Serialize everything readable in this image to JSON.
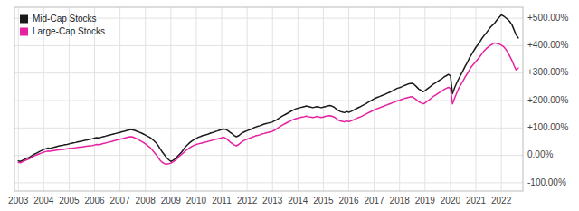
{
  "chart_data": {
    "type": "line",
    "x": [
      2003.0,
      2003.08,
      2003.17,
      2003.25,
      2003.33,
      2003.42,
      2003.5,
      2003.58,
      2003.67,
      2003.75,
      2003.83,
      2003.92,
      2004.0,
      2004.08,
      2004.17,
      2004.25,
      2004.33,
      2004.42,
      2004.5,
      2004.58,
      2004.67,
      2004.75,
      2004.83,
      2004.92,
      2005.0,
      2005.08,
      2005.17,
      2005.25,
      2005.33,
      2005.42,
      2005.5,
      2005.58,
      2005.67,
      2005.75,
      2005.83,
      2005.92,
      2006.0,
      2006.08,
      2006.17,
      2006.25,
      2006.33,
      2006.42,
      2006.5,
      2006.58,
      2006.67,
      2006.75,
      2006.83,
      2006.92,
      2007.0,
      2007.08,
      2007.17,
      2007.25,
      2007.33,
      2007.42,
      2007.5,
      2007.58,
      2007.67,
      2007.75,
      2007.83,
      2007.92,
      2008.0,
      2008.08,
      2008.17,
      2008.25,
      2008.33,
      2008.42,
      2008.5,
      2008.58,
      2008.67,
      2008.75,
      2008.83,
      2008.92,
      2009.0,
      2009.08,
      2009.17,
      2009.25,
      2009.33,
      2009.42,
      2009.5,
      2009.58,
      2009.67,
      2009.75,
      2009.83,
      2009.92,
      2010.0,
      2010.08,
      2010.17,
      2010.25,
      2010.33,
      2010.42,
      2010.5,
      2010.58,
      2010.67,
      2010.75,
      2010.83,
      2010.92,
      2011.0,
      2011.08,
      2011.17,
      2011.25,
      2011.33,
      2011.42,
      2011.5,
      2011.58,
      2011.67,
      2011.75,
      2011.83,
      2011.92,
      2012.0,
      2012.08,
      2012.17,
      2012.25,
      2012.33,
      2012.42,
      2012.5,
      2012.58,
      2012.67,
      2012.75,
      2012.83,
      2012.92,
      2013.0,
      2013.08,
      2013.17,
      2013.25,
      2013.33,
      2013.42,
      2013.5,
      2013.58,
      2013.67,
      2013.75,
      2013.83,
      2013.92,
      2014.0,
      2014.08,
      2014.17,
      2014.25,
      2014.33,
      2014.42,
      2014.5,
      2014.58,
      2014.67,
      2014.75,
      2014.83,
      2014.92,
      2015.0,
      2015.08,
      2015.17,
      2015.25,
      2015.33,
      2015.42,
      2015.5,
      2015.58,
      2015.67,
      2015.75,
      2015.83,
      2015.92,
      2016.0,
      2016.08,
      2016.17,
      2016.25,
      2016.33,
      2016.42,
      2016.5,
      2016.58,
      2016.67,
      2016.75,
      2016.83,
      2016.92,
      2017.0,
      2017.08,
      2017.17,
      2017.25,
      2017.33,
      2017.42,
      2017.5,
      2017.58,
      2017.67,
      2017.75,
      2017.83,
      2017.92,
      2018.0,
      2018.08,
      2018.17,
      2018.25,
      2018.33,
      2018.42,
      2018.5,
      2018.58,
      2018.67,
      2018.75,
      2018.83,
      2018.92,
      2019.0,
      2019.08,
      2019.17,
      2019.25,
      2019.33,
      2019.42,
      2019.5,
      2019.58,
      2019.67,
      2019.75,
      2019.83,
      2019.92,
      2020.0,
      2020.08,
      2020.17,
      2020.25,
      2020.33,
      2020.42,
      2020.5,
      2020.58,
      2020.67,
      2020.75,
      2020.83,
      2020.92,
      2021.0,
      2021.08,
      2021.17,
      2021.25,
      2021.33,
      2021.42,
      2021.5,
      2021.58,
      2021.67,
      2021.75,
      2021.83,
      2021.92,
      2022.0,
      2022.08,
      2022.17,
      2022.25,
      2022.33,
      2022.42,
      2022.5,
      2022.58,
      2022.67
    ],
    "series": [
      {
        "name": "Mid-Cap Stocks",
        "color": "#1a1a1a",
        "values": [
          -20,
          -22,
          -18,
          -15,
          -10,
          -8,
          -3,
          2,
          6,
          10,
          14,
          18,
          22,
          24,
          27,
          25,
          28,
          30,
          32,
          34,
          36,
          37,
          39,
          40,
          42,
          44,
          46,
          47,
          49,
          51,
          52,
          54,
          56,
          57,
          59,
          61,
          63,
          65,
          64,
          66,
          68,
          70,
          72,
          74,
          76,
          78,
          80,
          82,
          84,
          86,
          88,
          90,
          92,
          94,
          93,
          91,
          88,
          85,
          82,
          78,
          74,
          70,
          66,
          60,
          54,
          46,
          36,
          24,
          12,
          2,
          -8,
          -16,
          -22,
          -18,
          -12,
          -5,
          3,
          12,
          22,
          32,
          40,
          47,
          53,
          58,
          62,
          66,
          69,
          72,
          74,
          76,
          79,
          82,
          84,
          87,
          89,
          92,
          94,
          96,
          94,
          90,
          84,
          78,
          72,
          68,
          72,
          78,
          83,
          87,
          90,
          93,
          96,
          100,
          103,
          106,
          108,
          111,
          114,
          116,
          118,
          120,
          122,
          126,
          130,
          135,
          140,
          145,
          149,
          153,
          158,
          162,
          166,
          170,
          172,
          174,
          176,
          178,
          180,
          178,
          176,
          174,
          176,
          178,
          176,
          174,
          176,
          178,
          180,
          182,
          180,
          176,
          170,
          164,
          160,
          158,
          156,
          160,
          157,
          160,
          164,
          168,
          172,
          176,
          180,
          184,
          188,
          193,
          197,
          202,
          206,
          210,
          213,
          216,
          219,
          222,
          226,
          229,
          233,
          237,
          241,
          245,
          247,
          250,
          254,
          257,
          260,
          262,
          263,
          258,
          250,
          242,
          238,
          232,
          236,
          242,
          248,
          254,
          260,
          265,
          270,
          275,
          280,
          286,
          290,
          295,
          290,
          225,
          248,
          265,
          280,
          296,
          310,
          325,
          340,
          356,
          368,
          382,
          394,
          404,
          416,
          428,
          438,
          448,
          458,
          468,
          476,
          484,
          494,
          504,
          512,
          508,
          502,
          496,
          488,
          476,
          458,
          440,
          428
        ]
      },
      {
        "name": "Large-Cap Stocks",
        "color": "#e620a0",
        "values": [
          -25,
          -27,
          -23,
          -20,
          -16,
          -13,
          -8,
          -4,
          0,
          3,
          6,
          9,
          12,
          14,
          16,
          15,
          17,
          18,
          19,
          20,
          21,
          22,
          23,
          24,
          25,
          26,
          27,
          28,
          29,
          30,
          31,
          32,
          33,
          34,
          35,
          36,
          38,
          40,
          39,
          41,
          43,
          45,
          47,
          49,
          51,
          53,
          55,
          57,
          59,
          61,
          63,
          65,
          67,
          68,
          67,
          64,
          60,
          56,
          52,
          47,
          42,
          36,
          30,
          22,
          13,
          3,
          -8,
          -18,
          -26,
          -30,
          -32,
          -30,
          -28,
          -24,
          -18,
          -12,
          -4,
          4,
          10,
          17,
          23,
          28,
          33,
          37,
          40,
          42,
          44,
          46,
          48,
          50,
          52,
          54,
          56,
          58,
          60,
          62,
          64,
          66,
          62,
          56,
          49,
          43,
          38,
          35,
          40,
          46,
          52,
          56,
          59,
          62,
          65,
          68,
          71,
          73,
          75,
          78,
          80,
          82,
          84,
          86,
          88,
          92,
          97,
          102,
          107,
          112,
          116,
          120,
          124,
          128,
          131,
          134,
          136,
          138,
          140,
          141,
          143,
          141,
          140,
          138,
          140,
          142,
          140,
          138,
          140,
          142,
          144,
          145,
          143,
          140,
          135,
          129,
          126,
          124,
          122,
          126,
          123,
          126,
          129,
          132,
          136,
          139,
          142,
          146,
          150,
          154,
          158,
          162,
          166,
          169,
          172,
          175,
          178,
          181,
          184,
          187,
          190,
          193,
          196,
          199,
          201,
          204,
          207,
          209,
          211,
          213,
          214,
          209,
          202,
          196,
          192,
          188,
          191,
          197,
          203,
          209,
          215,
          220,
          225,
          230,
          235,
          240,
          244,
          248,
          244,
          188,
          210,
          228,
          245,
          260,
          272,
          286,
          299,
          312,
          324,
          334,
          342,
          351,
          362,
          372,
          382,
          390,
          396,
          402,
          407,
          410,
          408,
          406,
          402,
          397,
          388,
          376,
          362,
          346,
          328,
          312,
          318
        ]
      }
    ],
    "xlim": [
      2002.85,
      2022.85
    ],
    "xticks": [
      2003,
      2004,
      2005,
      2006,
      2007,
      2008,
      2009,
      2010,
      2011,
      2012,
      2013,
      2014,
      2015,
      2016,
      2017,
      2018,
      2019,
      2020,
      2021,
      2022
    ],
    "ylim": [
      -130,
      540
    ],
    "yticks": [
      {
        "value": -100,
        "label": "-100.00%"
      },
      {
        "value": 0,
        "label": "0.00%"
      },
      {
        "value": 100,
        "label": "+100.00%"
      },
      {
        "value": 200,
        "label": "+200.00%"
      },
      {
        "value": 300,
        "label": "+300.00%"
      },
      {
        "value": 400,
        "label": "+400.00%"
      },
      {
        "value": 500,
        "label": "+500.00%"
      }
    ],
    "grid": true,
    "legend": "upper left"
  }
}
